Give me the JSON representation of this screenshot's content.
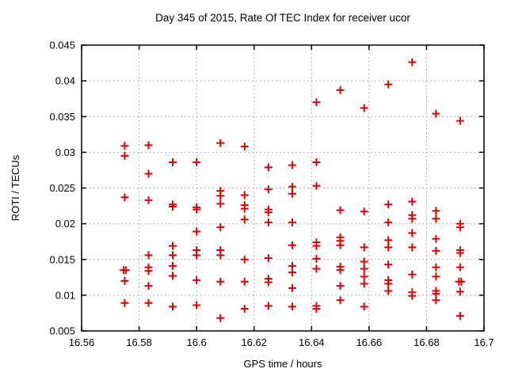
{
  "chart_data": {
    "type": "scatter",
    "title": "Day 345 of 2015, Rate Of TEC Index for receiver ucor",
    "xlabel": "GPS time / hours",
    "ylabel": "ROTI / TECUs",
    "xlim": [
      16.56,
      16.7
    ],
    "ylim": [
      0.005,
      0.045
    ],
    "xticks": [
      16.56,
      16.58,
      16.6,
      16.62,
      16.64,
      16.66,
      16.68,
      16.7
    ],
    "xtick_labels": [
      "16.56",
      "16.58",
      "16.6",
      "16.62",
      "16.64",
      "16.66",
      "16.68",
      "16.7"
    ],
    "yticks": [
      0.005,
      0.01,
      0.015,
      0.02,
      0.025,
      0.03,
      0.035,
      0.04,
      0.045
    ],
    "ytick_labels": [
      "0.005",
      "0.01",
      "0.015",
      "0.02",
      "0.025",
      "0.03",
      "0.035",
      "0.04",
      "0.045"
    ],
    "grid": true,
    "grid_color": "#b0b0b0",
    "border_color": "#000000",
    "marker": "plus",
    "marker_color": "#e00000",
    "legend": "none",
    "points": [
      [
        16.575,
        0.0309
      ],
      [
        16.575,
        0.0295
      ],
      [
        16.575,
        0.0237
      ],
      [
        16.5746,
        0.0135
      ],
      [
        16.5754,
        0.0135
      ],
      [
        16.575,
        0.012
      ],
      [
        16.575,
        0.0089
      ],
      [
        16.5833,
        0.031
      ],
      [
        16.5833,
        0.027
      ],
      [
        16.5833,
        0.0233
      ],
      [
        16.5833,
        0.0156
      ],
      [
        16.5833,
        0.0139
      ],
      [
        16.5833,
        0.0134
      ],
      [
        16.5833,
        0.0113
      ],
      [
        16.5833,
        0.0089
      ],
      [
        16.5917,
        0.0286
      ],
      [
        16.5917,
        0.0227
      ],
      [
        16.5917,
        0.0224
      ],
      [
        16.5917,
        0.0169
      ],
      [
        16.5917,
        0.0156
      ],
      [
        16.5917,
        0.0141
      ],
      [
        16.5917,
        0.0127
      ],
      [
        16.5917,
        0.0084
      ],
      [
        16.6,
        0.0286
      ],
      [
        16.6,
        0.0223
      ],
      [
        16.6,
        0.022
      ],
      [
        16.6,
        0.0189
      ],
      [
        16.6,
        0.0163
      ],
      [
        16.6,
        0.0156
      ],
      [
        16.6,
        0.0121
      ],
      [
        16.6,
        0.0086
      ],
      [
        16.6083,
        0.0313
      ],
      [
        16.6083,
        0.0246
      ],
      [
        16.6083,
        0.0239
      ],
      [
        16.6083,
        0.0228
      ],
      [
        16.6083,
        0.0195
      ],
      [
        16.6083,
        0.0163
      ],
      [
        16.6083,
        0.0156
      ],
      [
        16.6083,
        0.0119
      ],
      [
        16.6083,
        0.0068
      ],
      [
        16.6167,
        0.0308
      ],
      [
        16.6167,
        0.024
      ],
      [
        16.6167,
        0.0226
      ],
      [
        16.6167,
        0.0221
      ],
      [
        16.6167,
        0.0206
      ],
      [
        16.6167,
        0.015
      ],
      [
        16.6167,
        0.0119
      ],
      [
        16.6167,
        0.0081
      ],
      [
        16.625,
        0.0279
      ],
      [
        16.625,
        0.0248
      ],
      [
        16.625,
        0.022
      ],
      [
        16.625,
        0.0216
      ],
      [
        16.625,
        0.0202
      ],
      [
        16.625,
        0.0152
      ],
      [
        16.625,
        0.0123
      ],
      [
        16.625,
        0.0118
      ],
      [
        16.625,
        0.0085
      ],
      [
        16.6333,
        0.0282
      ],
      [
        16.6333,
        0.0252
      ],
      [
        16.6333,
        0.0242
      ],
      [
        16.6333,
        0.0202
      ],
      [
        16.6333,
        0.017
      ],
      [
        16.6333,
        0.0141
      ],
      [
        16.6333,
        0.0132
      ],
      [
        16.6333,
        0.011
      ],
      [
        16.6333,
        0.0084
      ],
      [
        16.6417,
        0.037
      ],
      [
        16.6417,
        0.0286
      ],
      [
        16.6417,
        0.0253
      ],
      [
        16.6417,
        0.0174
      ],
      [
        16.6417,
        0.0169
      ],
      [
        16.6417,
        0.0151
      ],
      [
        16.6417,
        0.0137
      ],
      [
        16.6417,
        0.0085
      ],
      [
        16.6417,
        0.0081
      ],
      [
        16.65,
        0.0387
      ],
      [
        16.65,
        0.0219
      ],
      [
        16.65,
        0.0181
      ],
      [
        16.65,
        0.0176
      ],
      [
        16.65,
        0.017
      ],
      [
        16.65,
        0.014
      ],
      [
        16.65,
        0.0135
      ],
      [
        16.65,
        0.0113
      ],
      [
        16.65,
        0.0093
      ],
      [
        16.6583,
        0.0362
      ],
      [
        16.6583,
        0.0217
      ],
      [
        16.6583,
        0.0167
      ],
      [
        16.6583,
        0.0147
      ],
      [
        16.6583,
        0.0137
      ],
      [
        16.6583,
        0.0126
      ],
      [
        16.6583,
        0.0116
      ],
      [
        16.6583,
        0.0084
      ],
      [
        16.6667,
        0.0395
      ],
      [
        16.6667,
        0.0227
      ],
      [
        16.6667,
        0.0202
      ],
      [
        16.6667,
        0.0177
      ],
      [
        16.6667,
        0.0167
      ],
      [
        16.6667,
        0.0143
      ],
      [
        16.6667,
        0.0121
      ],
      [
        16.6667,
        0.0116
      ],
      [
        16.6667,
        0.0106
      ],
      [
        16.675,
        0.0426
      ],
      [
        16.675,
        0.0231
      ],
      [
        16.675,
        0.0212
      ],
      [
        16.675,
        0.0207
      ],
      [
        16.675,
        0.0187
      ],
      [
        16.675,
        0.0167
      ],
      [
        16.675,
        0.0129
      ],
      [
        16.675,
        0.0104
      ],
      [
        16.675,
        0.0099
      ],
      [
        16.6833,
        0.0354
      ],
      [
        16.6833,
        0.0218
      ],
      [
        16.6833,
        0.0207
      ],
      [
        16.6833,
        0.0179
      ],
      [
        16.6833,
        0.0162
      ],
      [
        16.6833,
        0.0139
      ],
      [
        16.6833,
        0.0126
      ],
      [
        16.6833,
        0.0106
      ],
      [
        16.6833,
        0.0102
      ],
      [
        16.6833,
        0.0093
      ],
      [
        16.6917,
        0.0344
      ],
      [
        16.6917,
        0.02
      ],
      [
        16.6917,
        0.0195
      ],
      [
        16.6917,
        0.0163
      ],
      [
        16.6917,
        0.0159
      ],
      [
        16.6917,
        0.0139
      ],
      [
        16.6913,
        0.0119
      ],
      [
        16.6921,
        0.0119
      ],
      [
        16.6917,
        0.0105
      ],
      [
        16.6917,
        0.0071
      ]
    ]
  }
}
